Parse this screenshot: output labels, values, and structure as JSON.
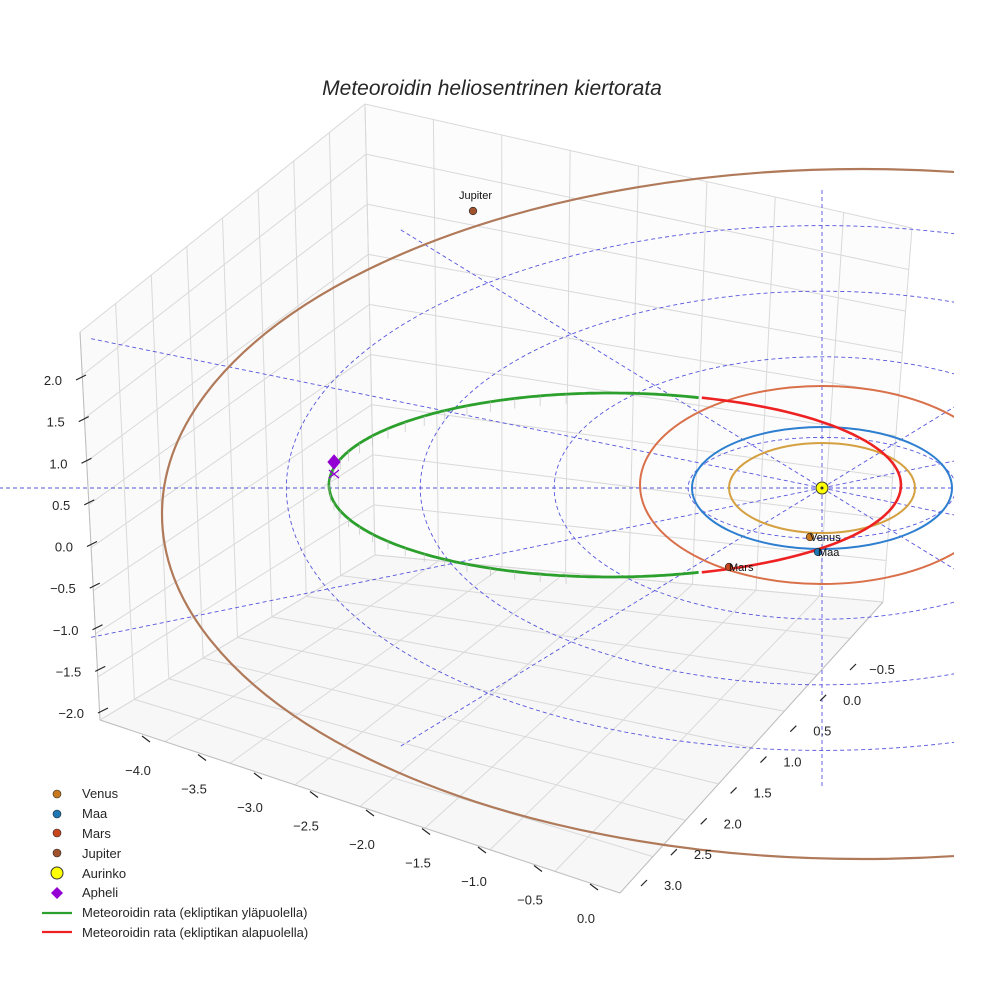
{
  "chart_data": {
    "type": "line",
    "projection": "3d",
    "title": "Meteoroidin heliosentrinen kiertorata",
    "xlabel": "",
    "ylabel": "",
    "zlabel": "",
    "xlim": [
      -4.3,
      0.1
    ],
    "ylim": [
      -0.8,
      3.3
    ],
    "zlim": [
      -2.2,
      2.3
    ],
    "x_ticks": [
      "−4.0",
      "−3.5",
      "−3.0",
      "−2.5",
      "−2.0",
      "−1.5",
      "−1.0",
      "−0.5",
      "0.0"
    ],
    "y_ticks": [
      "−0.5",
      "0.0",
      "0.5",
      "1.0",
      "1.5",
      "2.0",
      "2.5",
      "3.0"
    ],
    "z_ticks": [
      "2.0",
      "1.5",
      "1.0",
      "0.5",
      "0.0",
      "−0.5",
      "−1.0",
      "−1.5",
      "−2.0"
    ],
    "grid": true,
    "legend_position": "bottom-left",
    "ecliptic_grid": {
      "rings_au": [
        1,
        2,
        3,
        4
      ],
      "radial_lines": 12,
      "color": "#5555dd",
      "style": "dashed"
    },
    "sun": {
      "name": "Aurinko",
      "position": [
        0,
        0,
        0
      ],
      "color": "#ffff00"
    },
    "planets": [
      {
        "name": "Venus",
        "orbit_radius_au": 0.72,
        "angle_deg": 100,
        "color": "#d4a040",
        "marker_color": "#c8781e"
      },
      {
        "name": "Maa",
        "orbit_radius_au": 1.0,
        "angle_deg": 88,
        "color": "#2f7fd0",
        "marker_color": "#1f77b4"
      },
      {
        "name": "Mars",
        "orbit_radius_au": 1.52,
        "angle_deg": 130,
        "color": "#d9704a",
        "marker_color": "#c8461e"
      },
      {
        "name": "Jupiter",
        "orbit_radius_au": 5.2,
        "angle_deg": 140,
        "color": "#b07a5a",
        "marker_color": "#a0522d"
      }
    ],
    "meteoroid_orbit": {
      "aphelion_au": 4.0,
      "perihelion_au": 0.55,
      "inclination_deg": 4,
      "above_color": "#2ca02c",
      "below_color": "#ee2222"
    },
    "aphelion": {
      "name": "Apheli",
      "position": [
        -4.0,
        0.0,
        0.3
      ],
      "color": "#9400d3"
    },
    "legend": [
      {
        "label": "Venus",
        "marker": "dot",
        "color": "#c8781e"
      },
      {
        "label": "Maa",
        "marker": "dot",
        "color": "#1f77b4"
      },
      {
        "label": "Mars",
        "marker": "dot",
        "color": "#c8461e"
      },
      {
        "label": "Jupiter",
        "marker": "dot",
        "color": "#a0522d"
      },
      {
        "label": "Aurinko",
        "marker": "sun",
        "color": "#ffff00"
      },
      {
        "label": "Apheli",
        "marker": "diamond",
        "color": "#9400d3"
      },
      {
        "label": "Meteoroidin rata (ekliptikan yläpuolella)",
        "marker": "line",
        "color": "#2ca02c"
      },
      {
        "label": "Meteoroidin rata (ekliptikan alapuolella)",
        "marker": "line",
        "color": "#ee2222"
      }
    ]
  }
}
